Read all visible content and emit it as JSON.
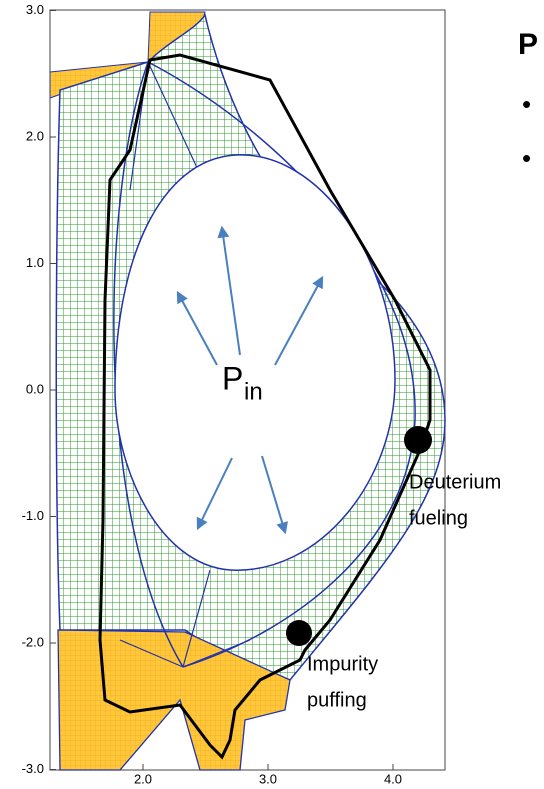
{
  "axes": {
    "yticks": [
      {
        "value": 3,
        "label": "3.0"
      },
      {
        "value": 2,
        "label": "2.0"
      },
      {
        "value": 1,
        "label": "1.0"
      },
      {
        "value": 0,
        "label": "0.0"
      },
      {
        "value": -1,
        "label": "-1.0"
      },
      {
        "value": -2,
        "label": "-2.0"
      },
      {
        "value": -3,
        "label": "-3.0"
      }
    ],
    "xticks": [
      {
        "value": 2,
        "label": "2.0"
      },
      {
        "value": 3,
        "label": "3.0"
      },
      {
        "value": 4,
        "label": "4.0"
      }
    ]
  },
  "power": {
    "symbol": "P",
    "subscript": "in"
  },
  "labels": {
    "deuterium": [
      "Deuterium",
      "fueling"
    ],
    "impurity": [
      "Impurity",
      "puffing"
    ]
  },
  "side_panel": {
    "heading": "P",
    "bullets": [
      "•",
      "•"
    ]
  }
}
